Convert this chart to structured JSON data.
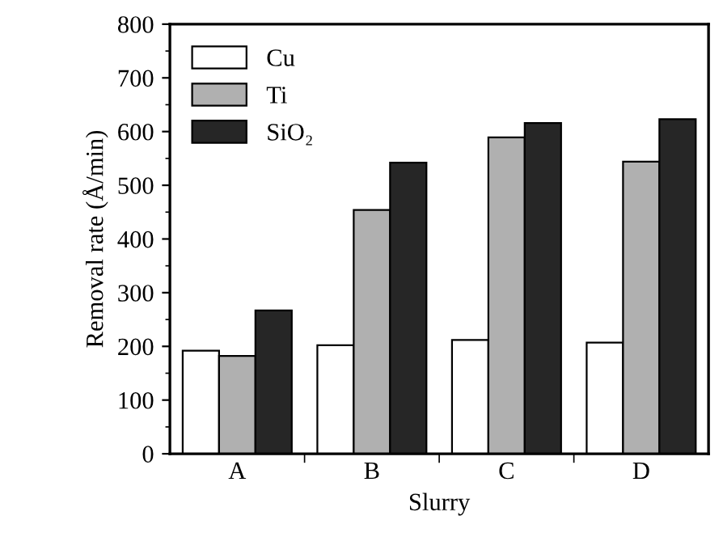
{
  "chart_data": {
    "type": "bar",
    "xlabel": "Slurry",
    "ylabel": "Removal rate (Å/min)",
    "categories": [
      "A",
      "B",
      "C",
      "D"
    ],
    "series": [
      {
        "name": "Cu",
        "color": "#ffffff",
        "values": [
          192,
          202,
          212,
          207
        ]
      },
      {
        "name": "Ti",
        "color": "#b0b0b0",
        "values": [
          182,
          454,
          589,
          544
        ]
      },
      {
        "name": "SiO₂",
        "color": "#262626",
        "values": [
          267,
          542,
          616,
          623
        ]
      }
    ],
    "ylim": [
      0,
      800
    ],
    "yticks": [
      0,
      100,
      200,
      300,
      400,
      500,
      600,
      700,
      800
    ],
    "grid": false,
    "legend": "top left"
  }
}
